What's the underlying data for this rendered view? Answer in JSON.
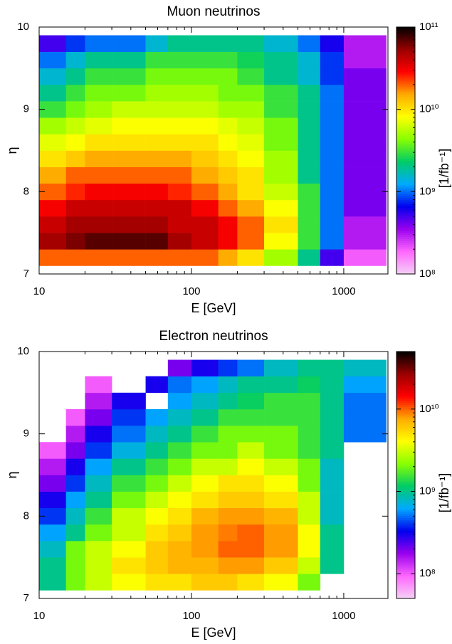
{
  "chart_data": [
    {
      "type": "heatmap",
      "title": "Muon neutrinos",
      "xlabel": "E [GeV]",
      "ylabel": "η",
      "zlabel": "[1/fb⁻¹]",
      "xlog": true,
      "zlog": true,
      "xlim": [
        10,
        1950
      ],
      "ylim": [
        7,
        10
      ],
      "zlim": [
        100000000,
        100000000000
      ],
      "xticks": [
        10,
        100,
        1000
      ],
      "yticks": [
        7,
        8,
        9,
        10
      ],
      "zticks": [
        {
          "value": 100000000,
          "label": "10⁸"
        },
        {
          "value": 1000000000,
          "label": "10⁹"
        },
        {
          "value": 10000000000,
          "label": "10¹⁰"
        },
        {
          "value": 100000000000,
          "label": "10¹¹"
        }
      ],
      "colormap": [
        "#f4d0f4",
        "#ff66ff",
        "#9900ee",
        "#0000ee",
        "#00aaff",
        "#00cc66",
        "#88ff00",
        "#ffff00",
        "#ffaa00",
        "#ff0000",
        "#990000",
        "#000000"
      ],
      "x_bins": [
        10,
        15,
        20,
        30,
        50,
        70,
        100,
        150,
        200,
        300,
        500,
        700,
        1000,
        1900
      ],
      "y_bins": [
        7.1,
        7.3,
        7.5,
        7.7,
        7.9,
        8.1,
        8.3,
        8.5,
        8.7,
        8.9,
        9.1,
        9.3,
        9.5,
        9.7,
        9.9
      ],
      "z": [
        [
          20000000000.0,
          20000000000.0,
          20000000000.0,
          20000000000.0,
          20000000000.0,
          20000000000.0,
          20000000000.0,
          15000000000.0,
          10000000000.0,
          5000000000.0,
          2000000000.0,
          500000000.0,
          200000000.0
        ],
        [
          50000000000.0,
          60000000000.0,
          70000000000.0,
          70000000000.0,
          70000000000.0,
          50000000000.0,
          40000000000.0,
          30000000000.0,
          20000000000.0,
          8000000000.0,
          3000000000.0,
          1000000000.0,
          300000000.0
        ],
        [
          40000000000.0,
          50000000000.0,
          50000000000.0,
          50000000000.0,
          50000000000.0,
          40000000000.0,
          40000000000.0,
          30000000000.0,
          20000000000.0,
          10000000000.0,
          3000000000.0,
          1000000000.0,
          300000000.0
        ],
        [
          30000000000.0,
          40000000000.0,
          40000000000.0,
          40000000000.0,
          40000000000.0,
          40000000000.0,
          30000000000.0,
          20000000000.0,
          15000000000.0,
          8000000000.0,
          3000000000.0,
          1000000000.0,
          400000000.0
        ],
        [
          20000000000.0,
          25000000000.0,
          30000000000.0,
          30000000000.0,
          30000000000.0,
          25000000000.0,
          20000000000.0,
          15000000000.0,
          10000000000.0,
          6000000000.0,
          3000000000.0,
          1000000000.0,
          400000000.0
        ],
        [
          15000000000.0,
          20000000000.0,
          20000000000.0,
          20000000000.0,
          20000000000.0,
          20000000000.0,
          15000000000.0,
          12000000000.0,
          10000000000.0,
          5000000000.0,
          2000000000.0,
          1000000000.0,
          400000000.0
        ],
        [
          10000000000.0,
          12000000000.0,
          15000000000.0,
          15000000000.0,
          15000000000.0,
          15000000000.0,
          12000000000.0,
          10000000000.0,
          8000000000.0,
          5000000000.0,
          2000000000.0,
          1000000000.0,
          400000000.0
        ],
        [
          7000000000.0,
          8000000000.0,
          10000000000.0,
          10000000000.0,
          10000000000.0,
          10000000000.0,
          10000000000.0,
          8000000000.0,
          7000000000.0,
          4000000000.0,
          2000000000.0,
          1000000000.0,
          400000000.0
        ],
        [
          5000000000.0,
          6000000000.0,
          7000000000.0,
          8000000000.0,
          8000000000.0,
          8000000000.0,
          8000000000.0,
          7000000000.0,
          6000000000.0,
          4000000000.0,
          2000000000.0,
          1000000000.0,
          400000000.0
        ],
        [
          3000000000.0,
          4000000000.0,
          5000000000.0,
          6000000000.0,
          6000000000.0,
          6000000000.0,
          6000000000.0,
          5000000000.0,
          5000000000.0,
          3000000000.0,
          2000000000.0,
          1000000000.0,
          400000000.0
        ],
        [
          2000000000.0,
          3000000000.0,
          4000000000.0,
          4000000000.0,
          5000000000.0,
          5000000000.0,
          5000000000.0,
          4000000000.0,
          4000000000.0,
          3000000000.0,
          2000000000.0,
          1000000000.0,
          400000000.0
        ],
        [
          1500000000.0,
          2000000000.0,
          3000000000.0,
          3000000000.0,
          4000000000.0,
          4000000000.0,
          4000000000.0,
          4000000000.0,
          3000000000.0,
          2000000000.0,
          1500000000.0,
          800000000.0,
          400000000.0
        ],
        [
          1000000000.0,
          1500000000.0,
          2000000000.0,
          2000000000.0,
          3000000000.0,
          3000000000.0,
          3000000000.0,
          3000000000.0,
          2500000000.0,
          2000000000.0,
          1500000000.0,
          800000000.0,
          300000000.0
        ],
        [
          500000000.0,
          800000000.0,
          1000000000.0,
          1000000000.0,
          1500000000.0,
          2000000000.0,
          2000000000.0,
          2000000000.0,
          2000000000.0,
          1500000000.0,
          1000000000.0,
          600000000.0,
          300000000.0
        ]
      ]
    },
    {
      "type": "heatmap",
      "title": "Electron neutrinos",
      "xlabel": "E [GeV]",
      "ylabel": "η",
      "zlabel": "[1/fb⁻¹]",
      "xlog": true,
      "zlog": true,
      "xlim": [
        10,
        1950
      ],
      "ylim": [
        7,
        10
      ],
      "zlim": [
        50000000,
        50000000000
      ],
      "xticks": [
        10,
        100,
        1000
      ],
      "yticks": [
        7,
        8,
        9,
        10
      ],
      "zticks": [
        {
          "value": 100000000,
          "label": "10⁸"
        },
        {
          "value": 1000000000,
          "label": "10⁹"
        },
        {
          "value": 10000000000,
          "label": "10¹⁰"
        }
      ],
      "colormap": [
        "#f4d0f4",
        "#ff66ff",
        "#9900ee",
        "#0000ee",
        "#00aaff",
        "#00cc66",
        "#88ff00",
        "#ffff00",
        "#ffaa00",
        "#ff0000",
        "#990000",
        "#000000"
      ],
      "x_bins": [
        10,
        15,
        20,
        30,
        50,
        70,
        100,
        150,
        200,
        300,
        500,
        700,
        1000,
        1900
      ],
      "y_bins": [
        7.1,
        7.3,
        7.5,
        7.7,
        7.9,
        8.1,
        8.3,
        8.5,
        8.7,
        8.9,
        9.1,
        9.3,
        9.5,
        9.7,
        9.9
      ],
      "z": [
        [
          1000000000.0,
          2000000000.0,
          3000000000.0,
          4000000000.0,
          5000000000.0,
          5000000000.0,
          6000000000.0,
          6000000000.0,
          5000000000.0,
          4000000000.0,
          2000000000.0,
          null,
          null
        ],
        [
          1000000000.0,
          2000000000.0,
          3000000000.0,
          5000000000.0,
          6000000000.0,
          7000000000.0,
          7000000000.0,
          8000000000.0,
          8000000000.0,
          6000000000.0,
          3000000000.0,
          1000000000.0,
          null
        ],
        [
          800000000.0,
          2000000000.0,
          3000000000.0,
          4000000000.0,
          6000000000.0,
          7000000000.0,
          8000000000.0,
          10000000000.0,
          10000000000.0,
          8000000000.0,
          4000000000.0,
          1000000000.0,
          null
        ],
        [
          600000000.0,
          1000000000.0,
          2000000000.0,
          3000000000.0,
          5000000000.0,
          6000000000.0,
          8000000000.0,
          9000000000.0,
          10000000000.0,
          8000000000.0,
          4000000000.0,
          1000000000.0,
          null
        ],
        [
          400000000.0,
          800000000.0,
          1500000000.0,
          3000000000.0,
          4000000000.0,
          5000000000.0,
          7000000000.0,
          8000000000.0,
          8000000000.0,
          7000000000.0,
          3000000000.0,
          800000000.0,
          null
        ],
        [
          300000000.0,
          600000000.0,
          1000000000.0,
          2000000000.0,
          3000000000.0,
          4000000000.0,
          5000000000.0,
          6000000000.0,
          6000000000.0,
          5000000000.0,
          3000000000.0,
          800000000.0,
          null
        ],
        [
          200000000.0,
          400000000.0,
          800000000.0,
          1500000000.0,
          2000000000.0,
          3000000000.0,
          4000000000.0,
          5000000000.0,
          5000000000.0,
          4000000000.0,
          2000000000.0,
          800000000.0,
          null
        ],
        [
          150000000.0,
          300000000.0,
          600000000.0,
          1000000000.0,
          1500000000.0,
          2000000000.0,
          3000000000.0,
          3000000000.0,
          4000000000.0,
          3000000000.0,
          2000000000.0,
          800000000.0,
          null
        ],
        [
          100000000.0,
          200000000.0,
          400000000.0,
          700000000.0,
          1000000000.0,
          1500000000.0,
          2000000000.0,
          2000000000.0,
          3000000000.0,
          2000000000.0,
          1500000000.0,
          1000000000.0,
          null
        ],
        [
          null,
          150000000.0,
          300000000.0,
          500000000.0,
          800000000.0,
          1000000000.0,
          1500000000.0,
          2000000000.0,
          2000000000.0,
          2000000000.0,
          1500000000.0,
          1000000000.0,
          500000000.0
        ],
        [
          null,
          100000000.0,
          200000000.0,
          400000000.0,
          600000000.0,
          800000000.0,
          1000000000.0,
          1500000000.0,
          1500000000.0,
          1500000000.0,
          1500000000.0,
          1000000000.0,
          500000000.0
        ],
        [
          null,
          null,
          150000000.0,
          300000000.0,
          null,
          600000000.0,
          800000000.0,
          1000000000.0,
          1200000000.0,
          1500000000.0,
          1500000000.0,
          1000000000.0,
          500000000.0
        ],
        [
          null,
          null,
          100000000.0,
          null,
          300000000.0,
          500000000.0,
          600000000.0,
          800000000.0,
          1000000000.0,
          1000000000.0,
          1200000000.0,
          1000000000.0,
          600000000.0
        ],
        [
          null,
          null,
          null,
          null,
          null,
          200000000.0,
          300000000.0,
          400000000.0,
          500000000.0,
          800000000.0,
          1000000000.0,
          1000000000.0,
          800000000.0
        ]
      ]
    }
  ]
}
